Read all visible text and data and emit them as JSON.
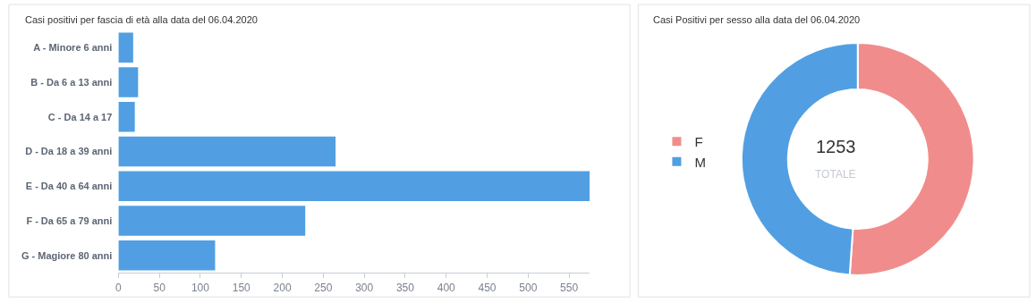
{
  "chart_data": [
    {
      "type": "bar",
      "orientation": "horizontal",
      "title": "Casi positivi per fascia di età alla data del 06.04.2020",
      "categories": [
        "A - Minore 6 anni",
        "B - Da 6 a 13 anni",
        "C - Da 14 a 17",
        "D - Da 18 a 39 anni",
        "E - Da 40 a 64 anni",
        "F - Da 65 a 79 anni",
        "G - Magiore 80 anni"
      ],
      "values": [
        18,
        24,
        20,
        265,
        575,
        228,
        118
      ],
      "color": "#519fe2",
      "xlim": [
        0,
        575
      ],
      "xticks": [
        0,
        50,
        100,
        150,
        200,
        250,
        300,
        350,
        400,
        450,
        500,
        550
      ],
      "legend": false
    },
    {
      "type": "donut",
      "title": "Casi Positivi per sesso alla data del 06.04.2020",
      "categories": [
        "F",
        "M"
      ],
      "values": [
        51.1,
        48.9
      ],
      "colors": [
        "#f08d8c",
        "#519fe2"
      ],
      "annotations": [
        "1253",
        "TOTALE"
      ],
      "legend": "left"
    }
  ]
}
